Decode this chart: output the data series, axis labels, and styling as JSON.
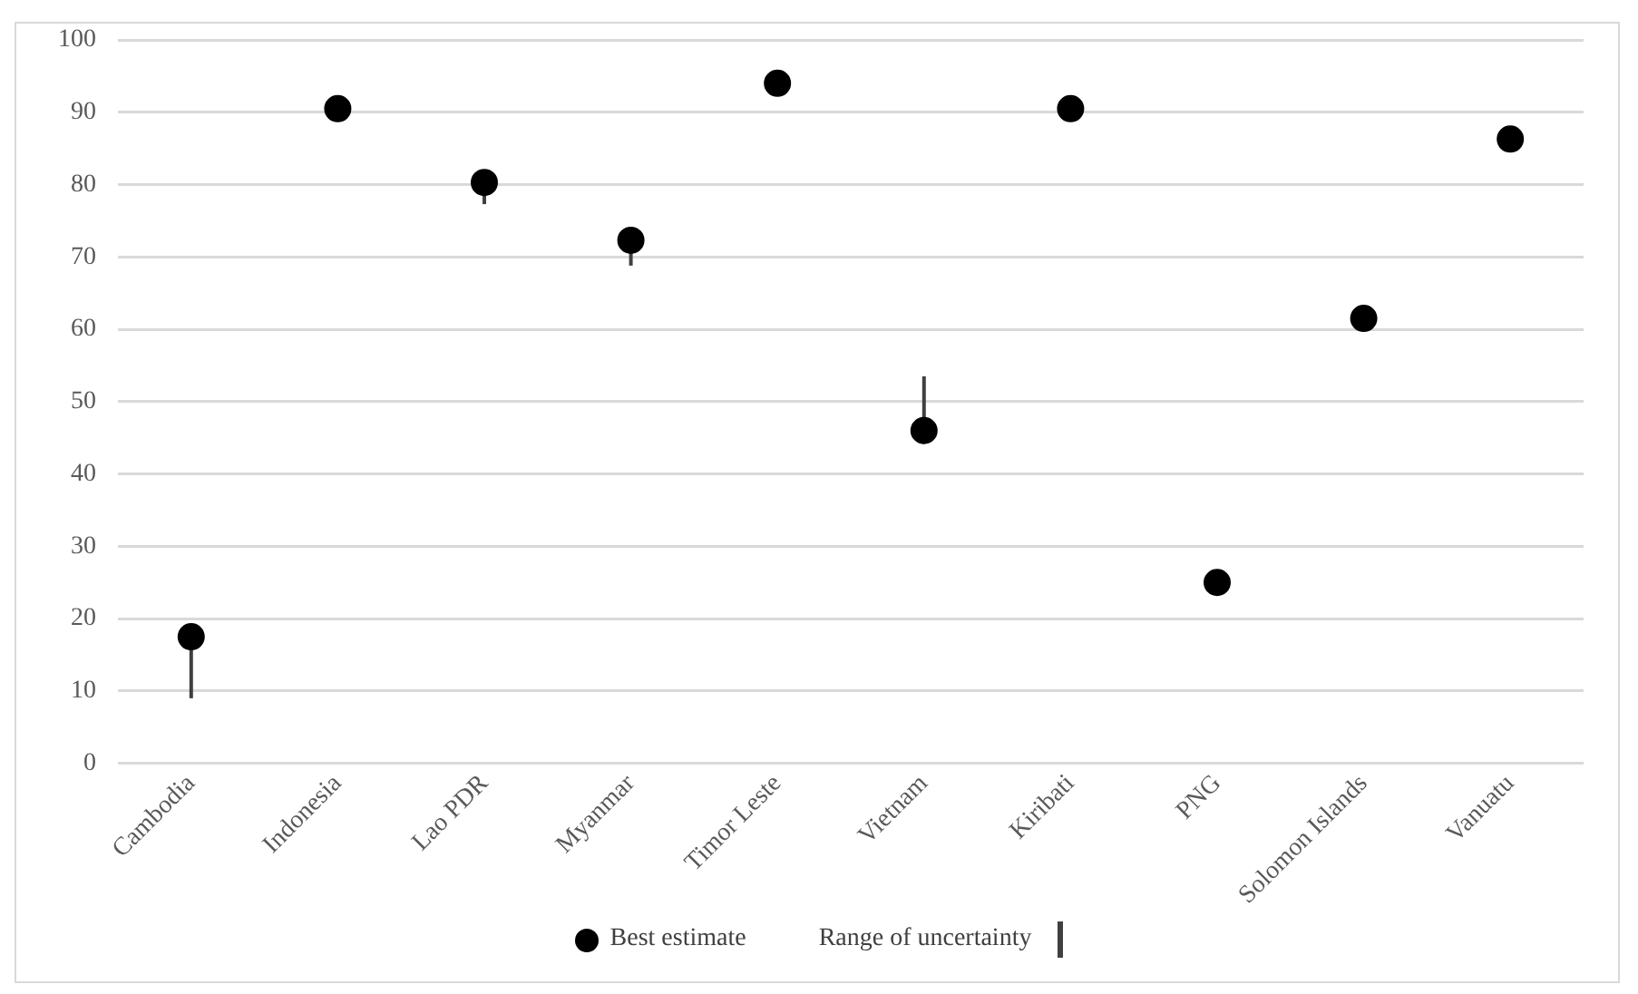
{
  "chart_data": {
    "type": "scatter",
    "categories": [
      "Cambodia",
      "Indonesia",
      "Lao PDR",
      "Myanmar",
      "Timor Leste",
      "Vietnam",
      "Kiribati",
      "PNG",
      "Solomon Islands",
      "Vanuatu"
    ],
    "series": [
      {
        "name": "Best estimate",
        "color": "#000000",
        "values": [
          17.5,
          90.5,
          80.3,
          72.3,
          94,
          46,
          90.5,
          25,
          61.5,
          86.3
        ],
        "errors": [
          [
            9,
            17.5
          ],
          null,
          [
            77.3,
            80.3
          ],
          [
            68.8,
            72.3
          ],
          null,
          [
            46,
            53.5
          ],
          null,
          null,
          null,
          null
        ]
      }
    ],
    "ylim": [
      0,
      100
    ],
    "yticks": [
      0,
      10,
      20,
      30,
      40,
      50,
      60,
      70,
      80,
      90,
      100
    ],
    "grid": "y",
    "legend": "bottom",
    "marker": "circle",
    "annotations": [
      "Range of uncertainty"
    ]
  }
}
